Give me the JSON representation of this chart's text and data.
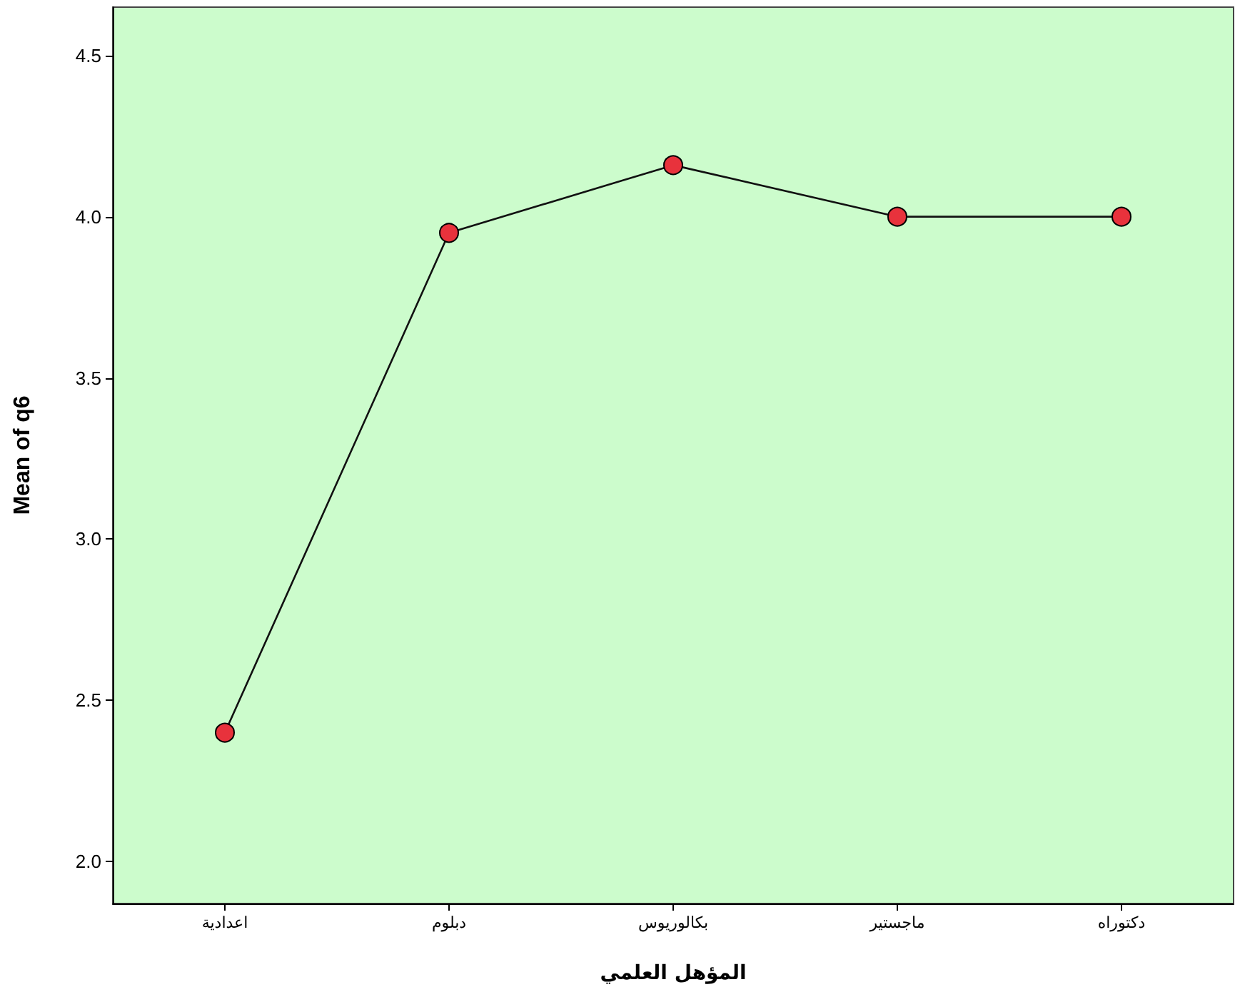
{
  "chart_data": {
    "type": "line",
    "xlabel": "المؤهل العلمي",
    "ylabel": "Mean of q6",
    "categories": [
      "اعدادية",
      "دبلوم",
      "بكالوريوس",
      "ماجستير",
      "دكتوراه"
    ],
    "series": [
      {
        "color": "#e8323c",
        "values": [
          2.4,
          3.95,
          4.16,
          4.0,
          4.0
        ]
      }
    ],
    "ylim": [
      1.87,
      4.65
    ],
    "yticks": [
      {
        "value": 2,
        "label": "2.0"
      },
      {
        "value": 2.5,
        "label": "2.5"
      },
      {
        "value": 3,
        "label": "3.0"
      },
      {
        "value": 3.5,
        "label": "3.5"
      },
      {
        "value": 4,
        "label": "4.0"
      },
      {
        "value": 4.5,
        "label": "4.5"
      }
    ],
    "grid": false,
    "marker": "circle",
    "line_style": "solid"
  }
}
